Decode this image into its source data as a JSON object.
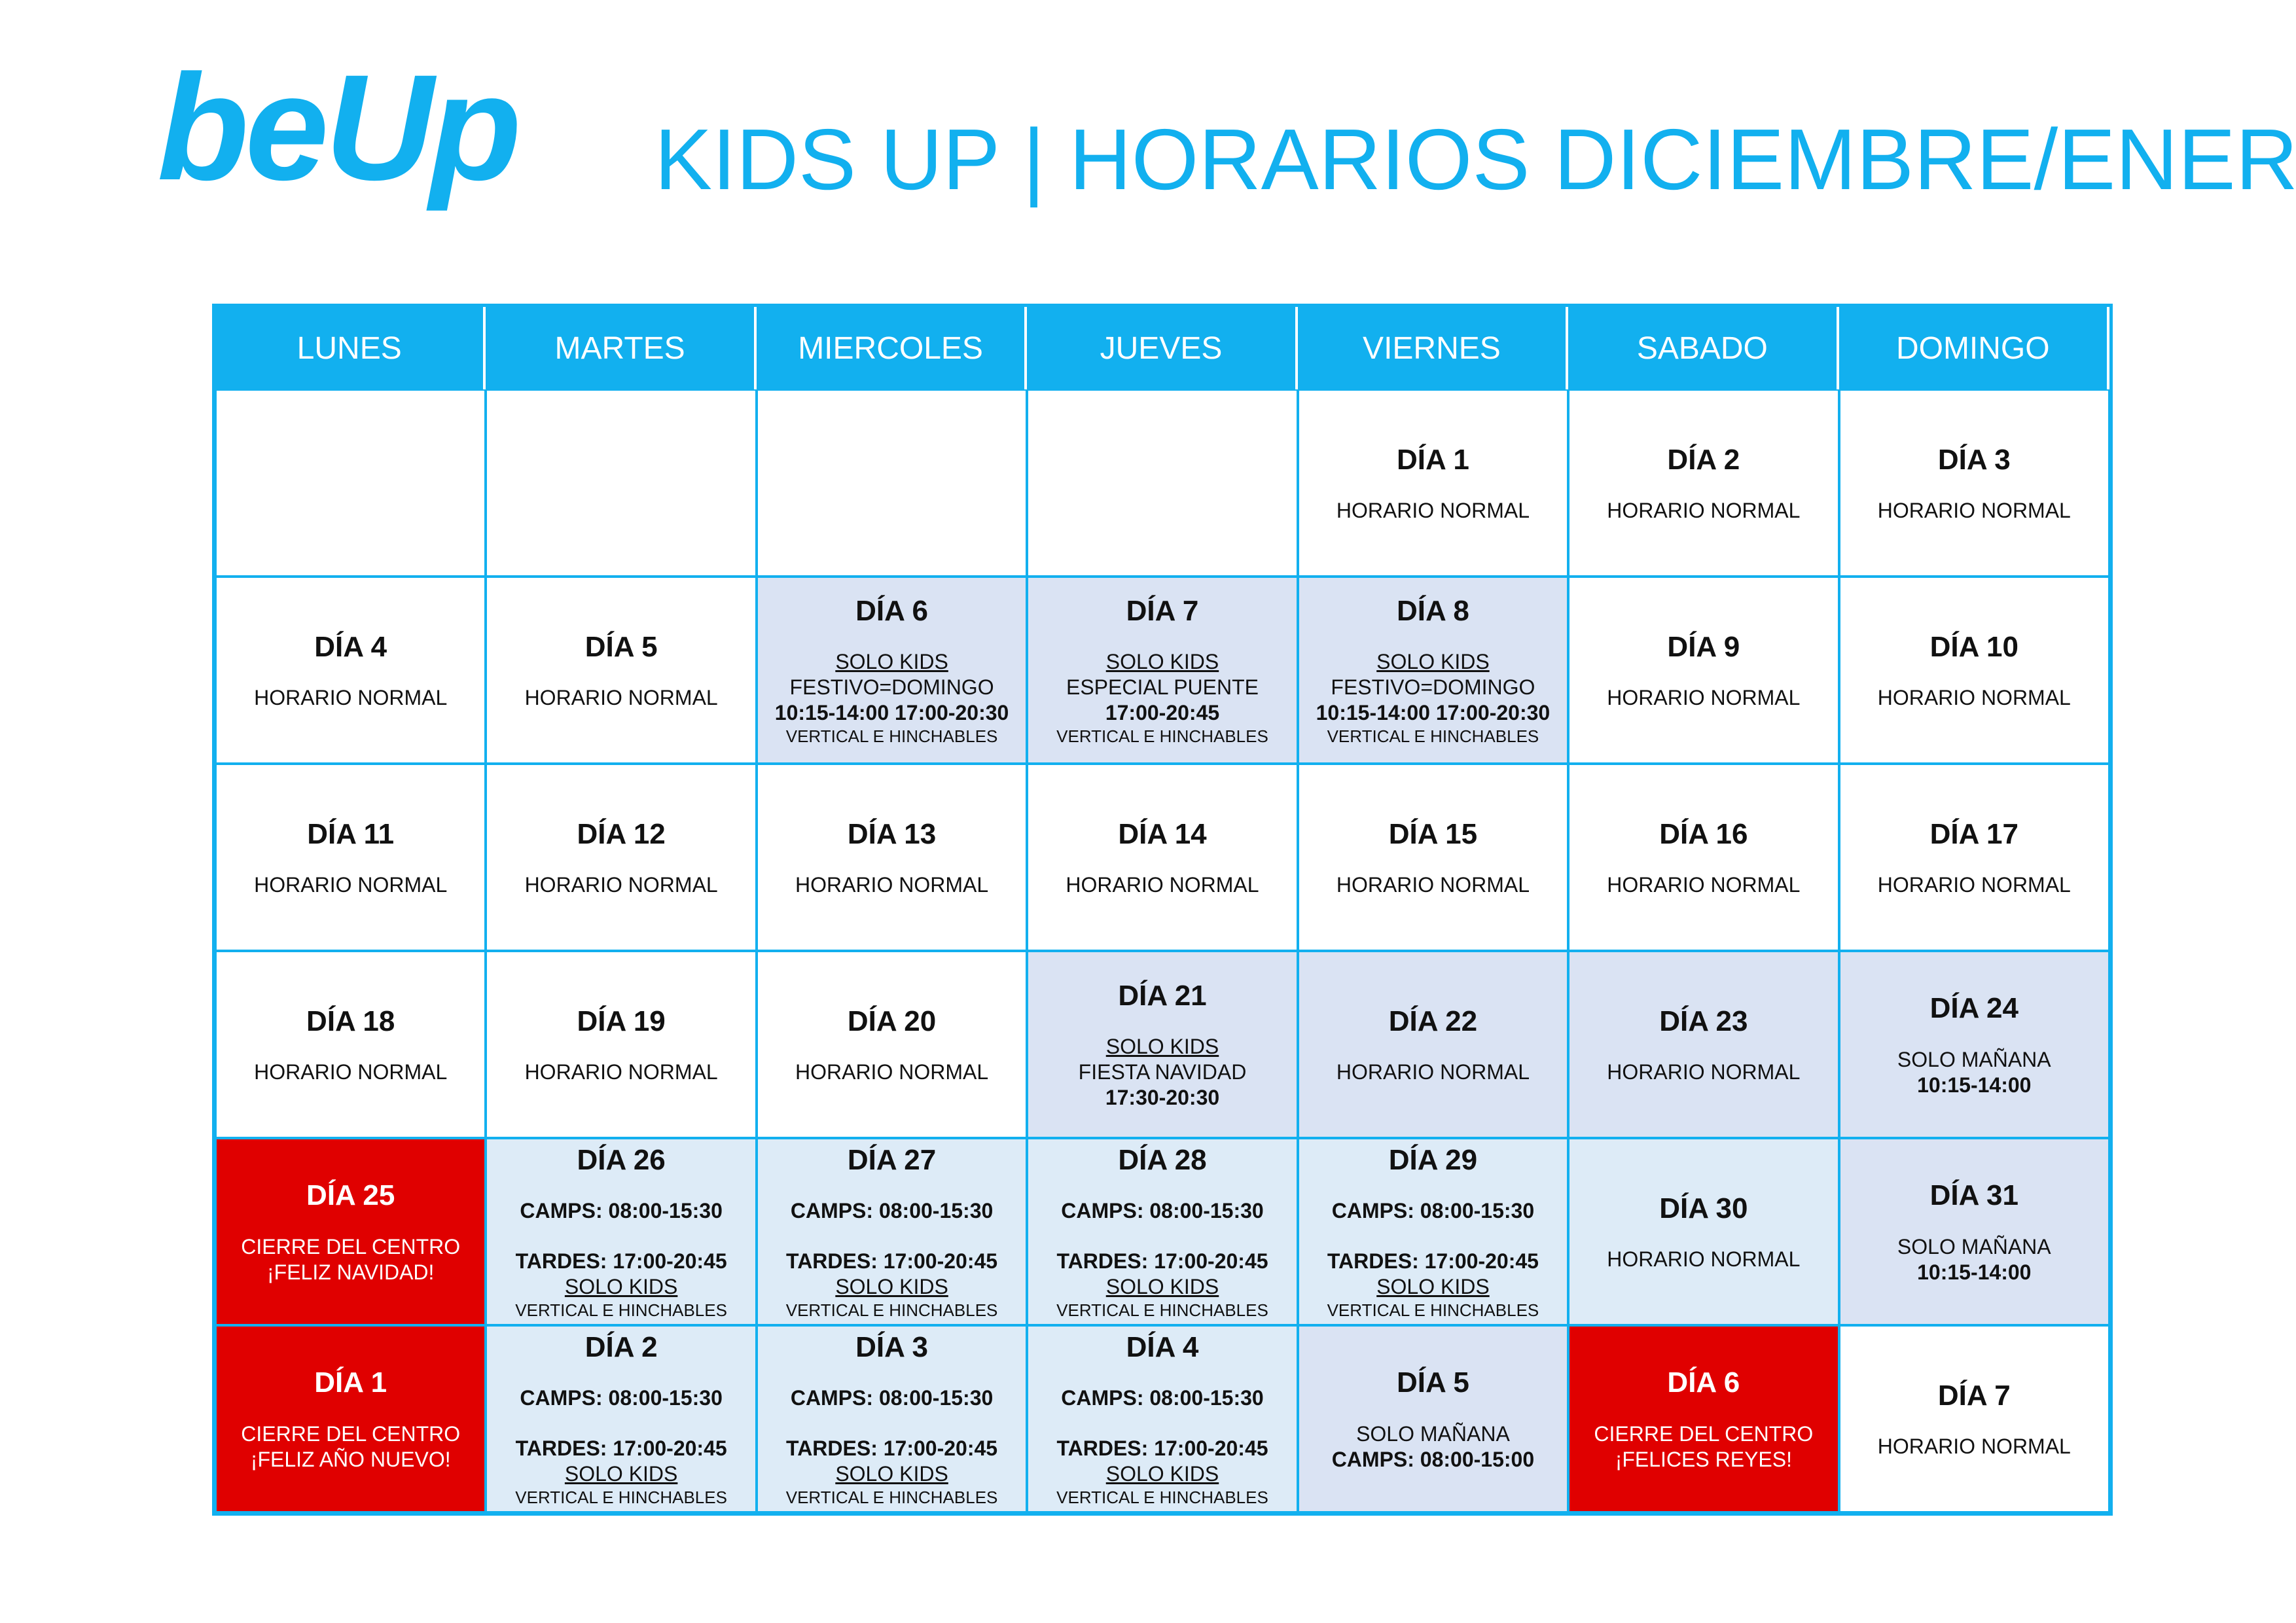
{
  "header": {
    "logo": "beUp",
    "title": "KIDS UP | HORARIOS DICIEMBRE/ENERO"
  },
  "table": {
    "header_color": "#12b0ef",
    "border_color": "#12b0ef",
    "columns": [
      "LUNES",
      "MARTES",
      "MIERCOLES",
      "JUEVES",
      "VIERNES",
      "SABADO",
      "DOMINGO"
    ],
    "rows": [
      [
        {},
        {},
        {},
        {},
        {
          "day": "DÍA 1",
          "lines": [
            "HORARIO NORMAL"
          ]
        },
        {
          "day": "DÍA 2",
          "lines": [
            "HORARIO NORMAL"
          ]
        },
        {
          "day": "DÍA 3",
          "lines": [
            "HORARIO NORMAL"
          ]
        }
      ],
      [
        {
          "day": "DÍA 4",
          "lines": [
            "HORARIO NORMAL"
          ]
        },
        {
          "day": "DÍA 5",
          "lines": [
            "HORARIO NORMAL"
          ]
        },
        {
          "day": "DÍA 6",
          "background": "#dae3f3",
          "lines": [
            {
              "text": "SOLO KIDS",
              "format": "underline"
            },
            "FESTIVO=DOMINGO",
            {
              "text": "10:15-14:00 17:00-20:30",
              "format": "bold"
            },
            {
              "text": "VERTICAL E HINCHABLES",
              "format": "small"
            }
          ]
        },
        {
          "day": "DÍA 7",
          "background": "#dae3f3",
          "lines": [
            {
              "text": "SOLO KIDS",
              "format": "underline"
            },
            "ESPECIAL PUENTE",
            {
              "text": "17:00-20:45",
              "format": "bold"
            },
            {
              "text": "VERTICAL E HINCHABLES",
              "format": "small"
            }
          ]
        },
        {
          "day": "DÍA 8",
          "background": "#dae3f3",
          "lines": [
            {
              "text": "SOLO KIDS",
              "format": "underline"
            },
            "FESTIVO=DOMINGO",
            {
              "text": "10:15-14:00 17:00-20:30",
              "format": "bold"
            },
            {
              "text": "VERTICAL E HINCHABLES",
              "format": "small"
            }
          ]
        },
        {
          "day": "DÍA 9",
          "lines": [
            "HORARIO NORMAL"
          ]
        },
        {
          "day": "DÍA 10",
          "lines": [
            "HORARIO NORMAL"
          ]
        }
      ],
      [
        {
          "day": "DÍA 11",
          "lines": [
            "HORARIO NORMAL"
          ]
        },
        {
          "day": "DÍA 12",
          "lines": [
            "HORARIO NORMAL"
          ]
        },
        {
          "day": "DÍA 13",
          "lines": [
            "HORARIO NORMAL"
          ]
        },
        {
          "day": "DÍA 14",
          "lines": [
            "HORARIO NORMAL"
          ]
        },
        {
          "day": "DÍA 15",
          "lines": [
            "HORARIO NORMAL"
          ]
        },
        {
          "day": "DÍA 16",
          "lines": [
            "HORARIO NORMAL"
          ]
        },
        {
          "day": "DÍA 17",
          "lines": [
            "HORARIO NORMAL"
          ]
        }
      ],
      [
        {
          "day": "DÍA 18",
          "lines": [
            "HORARIO NORMAL"
          ]
        },
        {
          "day": "DÍA 19",
          "lines": [
            "HORARIO NORMAL"
          ]
        },
        {
          "day": "DÍA 20",
          "lines": [
            "HORARIO NORMAL"
          ]
        },
        {
          "day": "DÍA 21",
          "background": "#dae3f3",
          "lines": [
            {
              "text": "SOLO KIDS",
              "format": "underline"
            },
            "FIESTA NAVIDAD",
            {
              "text": "17:30-20:30",
              "format": "bold"
            }
          ]
        },
        {
          "day": "DÍA 22",
          "background": "#dae3f3",
          "lines": [
            "HORARIO NORMAL"
          ]
        },
        {
          "day": "DÍA 23",
          "background": "#dae3f3",
          "lines": [
            "HORARIO NORMAL"
          ]
        },
        {
          "day": "DÍA 24",
          "background": "#dae3f3",
          "lines": [
            "SOLO MAÑANA",
            {
              "text": "10:15-14:00",
              "format": "bold"
            }
          ]
        }
      ],
      [
        {
          "day": "DÍA 25",
          "background": "#e00000",
          "lines": [
            "CIERRE DEL CENTRO",
            "¡FELIZ NAVIDAD!"
          ]
        },
        {
          "day": "DÍA 26",
          "background": "#ddebf7",
          "lines": [
            {
              "text": "CAMPS: 08:00-15:30",
              "format": "bold"
            },
            {
              "text": "TARDES: 17:00-20:45",
              "format": "bold"
            },
            {
              "text": "SOLO KIDS",
              "format": "underline"
            },
            {
              "text": "VERTICAL E HINCHABLES",
              "format": "small"
            }
          ]
        },
        {
          "day": "DÍA 27",
          "background": "#ddebf7",
          "lines": [
            {
              "text": "CAMPS: 08:00-15:30",
              "format": "bold"
            },
            {
              "text": "TARDES: 17:00-20:45",
              "format": "bold"
            },
            {
              "text": "SOLO KIDS",
              "format": "underline"
            },
            {
              "text": "VERTICAL E HINCHABLES",
              "format": "small"
            }
          ]
        },
        {
          "day": "DÍA 28",
          "background": "#ddebf7",
          "lines": [
            {
              "text": "CAMPS: 08:00-15:30",
              "format": "bold"
            },
            {
              "text": "TARDES: 17:00-20:45",
              "format": "bold"
            },
            {
              "text": "SOLO KIDS",
              "format": "underline"
            },
            {
              "text": "VERTICAL E HINCHABLES",
              "format": "small"
            }
          ]
        },
        {
          "day": "DÍA 29",
          "background": "#ddebf7",
          "lines": [
            {
              "text": "CAMPS: 08:00-15:30",
              "format": "bold"
            },
            {
              "text": "TARDES: 17:00-20:45",
              "format": "bold"
            },
            {
              "text": "SOLO KIDS",
              "format": "underline"
            },
            {
              "text": "VERTICAL E HINCHABLES",
              "format": "small"
            }
          ]
        },
        {
          "day": "DÍA 30",
          "background": "#ddebf7",
          "lines": [
            "HORARIO NORMAL"
          ]
        },
        {
          "day": "DÍA 31",
          "background": "#dae3f3",
          "lines": [
            "SOLO MAÑANA",
            {
              "text": "10:15-14:00",
              "format": "bold"
            }
          ]
        }
      ],
      [
        {
          "day": "DÍA 1",
          "background": "#e00000",
          "lines": [
            "CIERRE DEL CENTRO",
            "¡FELIZ AÑO NUEVO!"
          ]
        },
        {
          "day": "DÍA 2",
          "background": "#ddebf7",
          "lines": [
            {
              "text": "CAMPS: 08:00-15:30",
              "format": "bold"
            },
            {
              "text": "TARDES: 17:00-20:45",
              "format": "bold"
            },
            {
              "text": "SOLO KIDS",
              "format": "underline"
            },
            {
              "text": "VERTICAL E HINCHABLES",
              "format": "small"
            }
          ]
        },
        {
          "day": "DÍA 3",
          "background": "#ddebf7",
          "lines": [
            {
              "text": "CAMPS: 08:00-15:30",
              "format": "bold"
            },
            {
              "text": "TARDES: 17:00-20:45",
              "format": "bold"
            },
            {
              "text": "SOLO KIDS",
              "format": "underline"
            },
            {
              "text": "VERTICAL E HINCHABLES",
              "format": "small"
            }
          ]
        },
        {
          "day": "DÍA 4",
          "background": "#ddebf7",
          "lines": [
            {
              "text": "CAMPS: 08:00-15:30",
              "format": "bold"
            },
            {
              "text": "TARDES: 17:00-20:45",
              "format": "bold"
            },
            {
              "text": "SOLO KIDS",
              "format": "underline"
            },
            {
              "text": "VERTICAL E HINCHABLES",
              "format": "small"
            }
          ]
        },
        {
          "day": "DÍA 5",
          "background": "#dae3f3",
          "lines": [
            "SOLO MAÑANA",
            {
              "text": "CAMPS: 08:00-15:00",
              "format": "bold"
            }
          ]
        },
        {
          "day": "DÍA 6",
          "background": "#e00000",
          "lines": [
            "CIERRE DEL CENTRO",
            "¡FELICES REYES!"
          ]
        },
        {
          "day": "DÍA 7",
          "lines": [
            "HORARIO NORMAL"
          ]
        }
      ]
    ]
  }
}
